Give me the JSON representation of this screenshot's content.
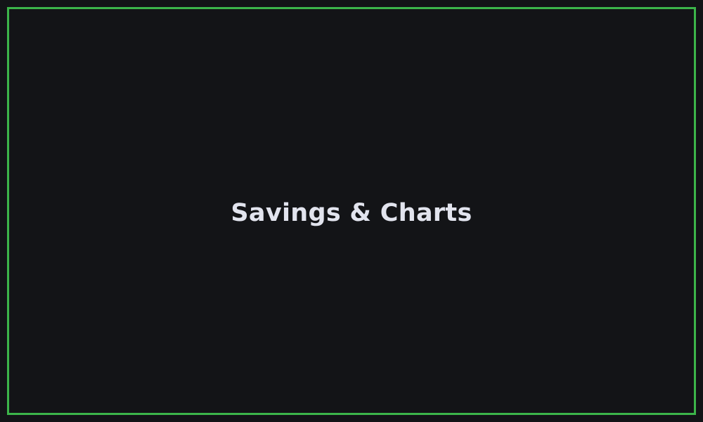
{
  "app": {
    "title": "Savings & Charts"
  },
  "theme": {
    "background": "#131417",
    "border_accent": "#3cb54a",
    "title_color": "#e2e4ee"
  }
}
